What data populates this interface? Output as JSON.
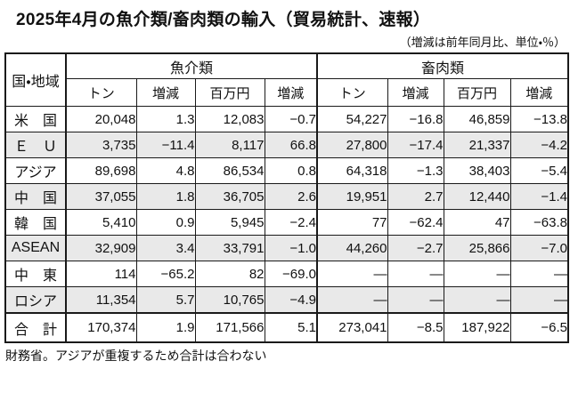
{
  "title": "2025年4月の魚介類/畜肉類の輸入（貿易統計、速報）",
  "subtitle": "（増減は前年同月比、単位・％）",
  "table": {
    "corner_header": "国・地域",
    "groups": [
      {
        "label": "魚介類",
        "columns": [
          "トン",
          "増減",
          "百万円",
          "増減"
        ]
      },
      {
        "label": "畜肉類",
        "columns": [
          "トン",
          "増減",
          "百万円",
          "増減"
        ]
      }
    ],
    "rows": [
      {
        "region": "米　国",
        "shaded": false,
        "is_total": false,
        "fish": [
          "20,048",
          "1.3",
          "12,083",
          "−0.7"
        ],
        "meat": [
          "54,227",
          "−16.8",
          "46,859",
          "−13.8"
        ]
      },
      {
        "region": "Ｅ　Ｕ",
        "shaded": true,
        "is_total": false,
        "fish": [
          "3,735",
          "−11.4",
          "8,117",
          "66.8"
        ],
        "meat": [
          "27,800",
          "−17.4",
          "21,337",
          "−4.2"
        ]
      },
      {
        "region": "アジア",
        "shaded": false,
        "is_total": false,
        "fish": [
          "89,698",
          "4.8",
          "86,534",
          "0.8"
        ],
        "meat": [
          "64,318",
          "−1.3",
          "38,403",
          "−5.4"
        ]
      },
      {
        "region": "中　国",
        "shaded": true,
        "is_total": false,
        "fish": [
          "37,055",
          "1.8",
          "36,705",
          "2.6"
        ],
        "meat": [
          "19,951",
          "2.7",
          "12,440",
          "−1.4"
        ]
      },
      {
        "region": "韓　国",
        "shaded": false,
        "is_total": false,
        "fish": [
          "5,410",
          "0.9",
          "5,945",
          "−2.4"
        ],
        "meat": [
          "77",
          "−62.4",
          "47",
          "−63.8"
        ]
      },
      {
        "region": "ASEAN",
        "shaded": true,
        "is_total": false,
        "fish": [
          "32,909",
          "3.4",
          "33,791",
          "−1.0"
        ],
        "meat": [
          "44,260",
          "−2.7",
          "25,866",
          "−7.0"
        ]
      },
      {
        "region": "中　東",
        "shaded": false,
        "is_total": false,
        "fish": [
          "114",
          "−65.2",
          "82",
          "−69.0"
        ],
        "meat": [
          "—",
          "—",
          "—",
          "—"
        ]
      },
      {
        "region": "ロシア",
        "shaded": true,
        "is_total": false,
        "fish": [
          "11,354",
          "5.7",
          "10,765",
          "−4.9"
        ],
        "meat": [
          "—",
          "—",
          "—",
          "—"
        ]
      },
      {
        "region": "合　計",
        "shaded": false,
        "is_total": true,
        "fish": [
          "170,374",
          "1.9",
          "171,566",
          "5.1"
        ],
        "meat": [
          "273,041",
          "−8.5",
          "187,922",
          "−6.5"
        ]
      }
    ]
  },
  "footnote": "財務省。アジアが重複するため合計は合わない",
  "colors": {
    "row_shading": "#e9e9e9",
    "border": "#1a1a1a",
    "background": "#ffffff",
    "text": "#111111"
  }
}
